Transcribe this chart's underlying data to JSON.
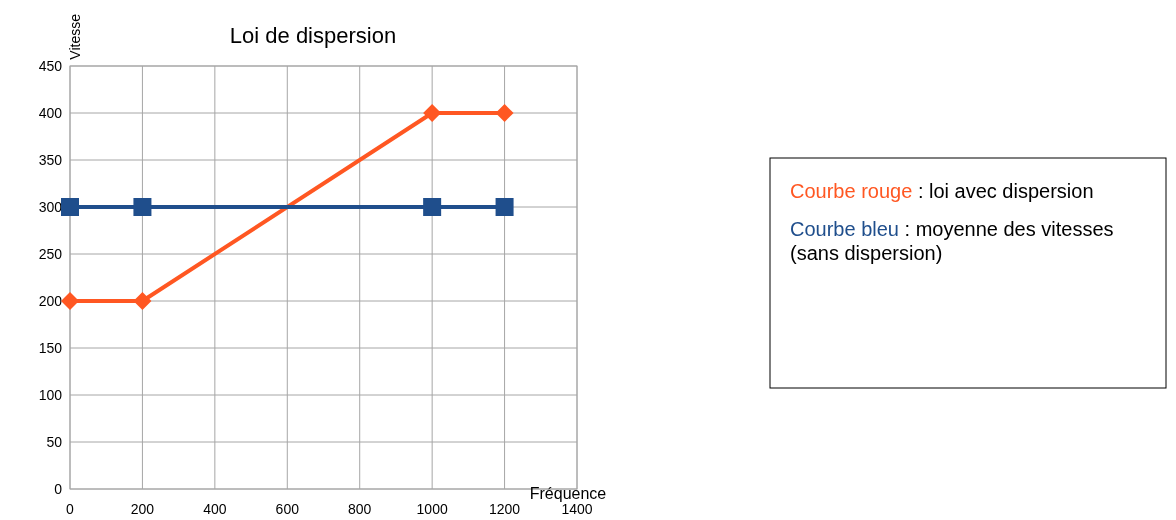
{
  "chart_data": {
    "type": "line",
    "title": "Loi de dispersion",
    "xlabel": "Fréquence",
    "ylabel": "Vitesse",
    "xlim": [
      0,
      1400
    ],
    "xticks": [
      0,
      200,
      400,
      600,
      800,
      1000,
      1200,
      1400
    ],
    "ylim": [
      0,
      450
    ],
    "yticks": [
      0,
      50,
      100,
      150,
      200,
      250,
      300,
      350,
      400,
      450
    ],
    "grid": true,
    "series": [
      {
        "color": "#ff5722",
        "marker": "diamond",
        "x": [
          0,
          200,
          1000,
          1200
        ],
        "values": [
          200,
          200,
          400,
          400
        ]
      },
      {
        "color": "#1f4e8c",
        "marker": "square",
        "x": [
          0,
          200,
          1000,
          1200
        ],
        "values": [
          300,
          300,
          300,
          300
        ]
      }
    ],
    "annotations": [
      "Courbe rouge : loi avec dispersion",
      "Courbe bleu : moyenne des vitesses (sans dispersion)"
    ]
  }
}
